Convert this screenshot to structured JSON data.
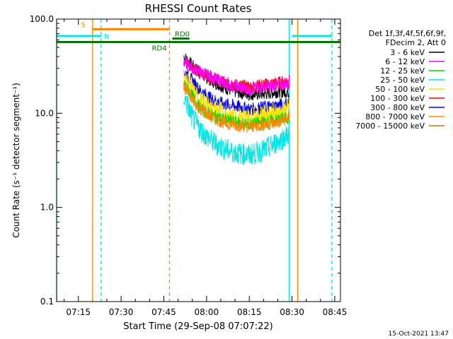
{
  "chart_data": {
    "type": "line",
    "title": "RHESSI Count Rates",
    "xlabel": "Start Time (29-Sep-08 07:07:22)",
    "ylabel": "Count Rate (s⁻¹ detector segment⁻¹)",
    "xlim": [
      "07:07:22",
      "08:47:00"
    ],
    "ylim": [
      0.1,
      100.0
    ],
    "yscale": "log",
    "x_ticks": [
      "07:15",
      "07:30",
      "07:45",
      "08:00",
      "08:15",
      "08:30",
      "08:45"
    ],
    "y_ticks": [
      "0.1",
      "1.0",
      "10.0",
      "100.0"
    ],
    "legend_header": [
      "Det 1f,3f,4f,5f,6f,9f,",
      "FDecim 2, Att 0"
    ],
    "legend_position": "right",
    "timestamp": "15-Oct-2021 13:47",
    "x_data": [
      "07:52",
      "07:55",
      "07:58",
      "08:02",
      "08:06",
      "08:10",
      "08:15",
      "08:20",
      "08:25",
      "08:29"
    ],
    "series": [
      {
        "name": "3 - 6 keV",
        "color": "#000000",
        "values": [
          40,
          32,
          26,
          22,
          19,
          17,
          16,
          16,
          17,
          17
        ]
      },
      {
        "name": "6 - 12 keV",
        "color": "#ff00ff",
        "values": [
          35,
          30,
          27,
          24,
          21,
          19,
          18,
          19,
          20,
          21
        ]
      },
      {
        "name": "12 - 25 keV",
        "color": "#00dd00",
        "values": [
          21,
          15,
          11,
          9.5,
          8.5,
          8,
          7.5,
          8,
          8.5,
          9
        ]
      },
      {
        "name": "25 - 50 keV",
        "color": "#00e5e5",
        "values": [
          15,
          9,
          6.5,
          5,
          4.2,
          3.8,
          3.6,
          4,
          5,
          6
        ]
      },
      {
        "name": "50 - 100 keV",
        "color": "#ffe000",
        "values": [
          24,
          17,
          13,
          11,
          10,
          9,
          9,
          9.5,
          10,
          11
        ]
      },
      {
        "name": "100 - 300 keV",
        "color": "#ff0000",
        "values": [
          37,
          31,
          27,
          24,
          21,
          20,
          19,
          20,
          21,
          22
        ]
      },
      {
        "name": "300 - 800 keV",
        "color": "#0000ff",
        "values": [
          28,
          22,
          17,
          14,
          12.5,
          12,
          11,
          11.5,
          12,
          13
        ]
      },
      {
        "name": "800 - 7000 keV",
        "color": "#ff8800",
        "values": [
          19,
          14,
          11,
          9,
          8,
          7.5,
          7.2,
          7.5,
          8,
          9
        ]
      },
      {
        "name": "7000 - 15000 keV",
        "color": "#cc7700",
        "values": []
      }
    ],
    "annotations": [
      {
        "label": "S",
        "color": "#ff8800",
        "x_start": "07:20",
        "x_end": "07:47",
        "y": 78
      },
      {
        "label": "N",
        "color": "#00e5e5",
        "x_start": "07:07:22",
        "x_end": "07:23",
        "y": 66
      },
      {
        "label": "",
        "color": "#00e5e5",
        "x_start": "08:30",
        "x_end": "08:44",
        "y": 66
      },
      {
        "label": "RD4",
        "color": "#007700",
        "x_start": "07:07:22",
        "x_end": "08:47",
        "y": 57
      },
      {
        "label": "RD0",
        "color": "#007700",
        "x_start": "07:48",
        "x_end": "07:54",
        "y": 62
      }
    ],
    "vertical_lines": [
      {
        "color": "#00e5e5",
        "x": "07:07:22",
        "style": "solid"
      },
      {
        "color": "#ff8800",
        "x": "07:20",
        "style": "solid"
      },
      {
        "color": "#00e5e5",
        "x": "07:23",
        "style": "dashed"
      },
      {
        "color": "#ff8800",
        "x": "07:47",
        "style": "dashed"
      },
      {
        "color": "#00e5e5",
        "x": "08:29",
        "style": "solid"
      },
      {
        "color": "#ff8800",
        "x": "08:32",
        "style": "solid"
      },
      {
        "color": "#00e5e5",
        "x": "08:44",
        "style": "dashed"
      }
    ]
  }
}
